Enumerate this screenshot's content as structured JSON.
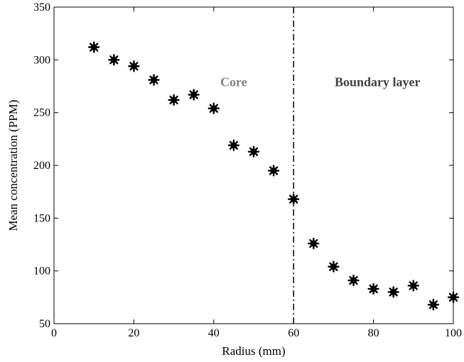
{
  "chart_data": {
    "type": "scatter",
    "xlabel": "Radius (mm)",
    "ylabel": "Mean concentration (PPM)",
    "xlim": [
      0,
      100
    ],
    "ylim": [
      50,
      350
    ],
    "xticks": [
      0,
      20,
      40,
      60,
      80,
      100
    ],
    "yticks": [
      50,
      100,
      150,
      200,
      250,
      300,
      350
    ],
    "grid": false,
    "marker": "asterisk",
    "marker_color": "#000000",
    "series": [
      {
        "x": [
          10,
          15,
          20,
          25,
          30,
          35,
          40,
          45,
          50,
          55,
          60,
          65,
          70,
          75,
          80,
          85,
          90,
          95,
          100
        ],
        "y": [
          312,
          300,
          294,
          281,
          262,
          267,
          254,
          219,
          213,
          195,
          168,
          126,
          104,
          91,
          83,
          80,
          86,
          68,
          75
        ]
      }
    ],
    "vertical_line": {
      "x": 60,
      "style": "dash-dot",
      "color": "#000000"
    },
    "annotations": [
      {
        "text": "Core",
        "x": 45,
        "y": 275,
        "color": "#808080"
      },
      {
        "text": "Boundary layer",
        "x": 81,
        "y": 275,
        "color": "#404040"
      }
    ]
  }
}
